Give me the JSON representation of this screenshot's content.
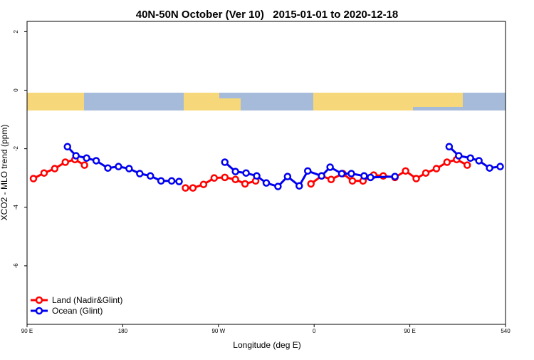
{
  "chart_data": {
    "type": "line",
    "title": "40N-50N October (Ver 10)   2015-01-01 to 2020-12-18",
    "xlabel": "Longitude (deg E)",
    "ylabel": "XCO2 - MLO trend (ppm)",
    "xlim": [
      90,
      540
    ],
    "ylim": [
      -8,
      2.35
    ],
    "xticks": [
      {
        "value": 90,
        "label": "90 E"
      },
      180,
      {
        "value": 270,
        "label": "90 W"
      },
      {
        "value": 360,
        "label": "0"
      },
      {
        "value": 450,
        "label": "90 E"
      },
      540
    ],
    "yticks": [
      -6,
      -4,
      -2,
      0,
      2
    ],
    "legend": "bottom-left",
    "series": [
      {
        "name": "Land (Nadir&Glint)",
        "color": "#ff0000",
        "x": [
          96,
          106,
          116,
          126,
          135,
          144,
          239,
          246,
          256,
          266,
          276,
          286,
          295,
          305,
          357,
          367,
          376,
          387,
          396,
          406,
          416,
          425,
          436,
          446,
          456,
          465,
          475,
          485,
          494,
          504
        ],
        "values": [
          -3.02,
          -2.83,
          -2.68,
          -2.46,
          -2.37,
          -2.56,
          -3.34,
          -3.34,
          -3.22,
          -3.0,
          -2.98,
          -3.05,
          -3.2,
          -3.1,
          -3.2,
          -2.93,
          -3.05,
          -2.85,
          -3.1,
          -3.1,
          -2.9,
          -2.93,
          -2.98,
          -2.76,
          -3.02,
          -2.83,
          -2.68,
          -2.46,
          -2.37,
          -2.56
        ]
      },
      {
        "name": "Ocean (Glint)",
        "color": "#0000ee",
        "x": [
          128,
          136,
          146,
          155,
          166,
          176,
          186,
          196,
          206,
          216,
          226,
          233,
          276,
          286,
          296,
          306,
          315,
          326,
          335,
          346,
          354,
          367,
          375,
          386,
          395,
          407,
          413,
          436,
          487,
          496,
          507,
          515,
          525,
          535
        ],
        "values": [
          -1.93,
          -2.24,
          -2.32,
          -2.41,
          -2.66,
          -2.61,
          -2.68,
          -2.85,
          -2.93,
          -3.1,
          -3.1,
          -3.12,
          -2.46,
          -2.78,
          -2.83,
          -2.93,
          -3.17,
          -3.29,
          -2.95,
          -3.27,
          -2.76,
          -2.93,
          -2.63,
          -2.85,
          -2.85,
          -2.93,
          -2.98,
          -2.95,
          -1.93,
          -2.24,
          -2.32,
          -2.41,
          -2.66,
          -2.61
        ]
      }
    ]
  }
}
